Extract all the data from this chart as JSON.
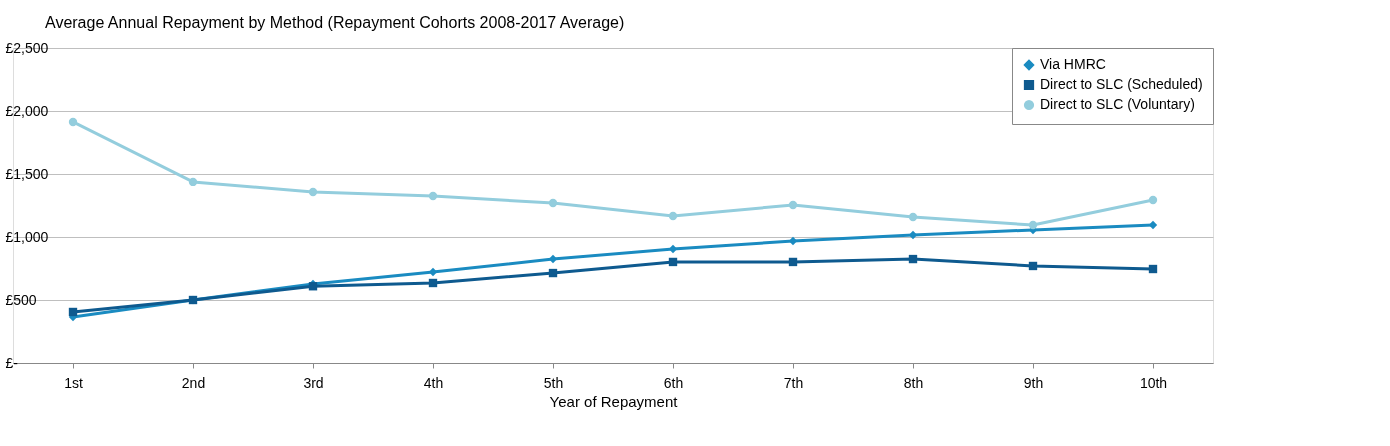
{
  "chart_data": {
    "type": "line",
    "title": "Average Annual Repayment by Method  (Repayment Cohorts 2008-2017 Average)",
    "xlabel": "Year of Repayment",
    "categories": [
      "1st",
      "2nd",
      "3rd",
      "4th",
      "5th",
      "6th",
      "7th",
      "8th",
      "9th",
      "10th"
    ],
    "series": [
      {
        "name": "Via HMRC",
        "color": "#1a8bc1",
        "marker": "diamond",
        "values": [
          365,
          500,
          627,
          722,
          825,
          905,
          968,
          1016,
          1056,
          1095
        ]
      },
      {
        "name": "Direct to SLC (Scheduled)",
        "color": "#0e5a8f",
        "marker": "square",
        "values": [
          405,
          500,
          609,
          635,
          714,
          802,
          802,
          825,
          770,
          746
        ]
      },
      {
        "name": "Direct to SLC (Voluntary)",
        "color": "#93cddd",
        "marker": "circle",
        "values": [
          1913,
          1437,
          1357,
          1325,
          1270,
          1167,
          1254,
          1159,
          1095,
          1294
        ]
      }
    ],
    "ylim": [
      0,
      2500
    ],
    "yticks": [
      {
        "value": 0,
        "label": "£-"
      },
      {
        "value": 500,
        "label": "£500"
      },
      {
        "value": 1000,
        "label": "£1,000"
      },
      {
        "value": 1500,
        "label": "£1,500"
      },
      {
        "value": 2000,
        "label": "£2,000"
      },
      {
        "value": 2500,
        "label": "£2,500"
      }
    ],
    "grid": "y",
    "legend": "top right",
    "line_style": "solid"
  }
}
